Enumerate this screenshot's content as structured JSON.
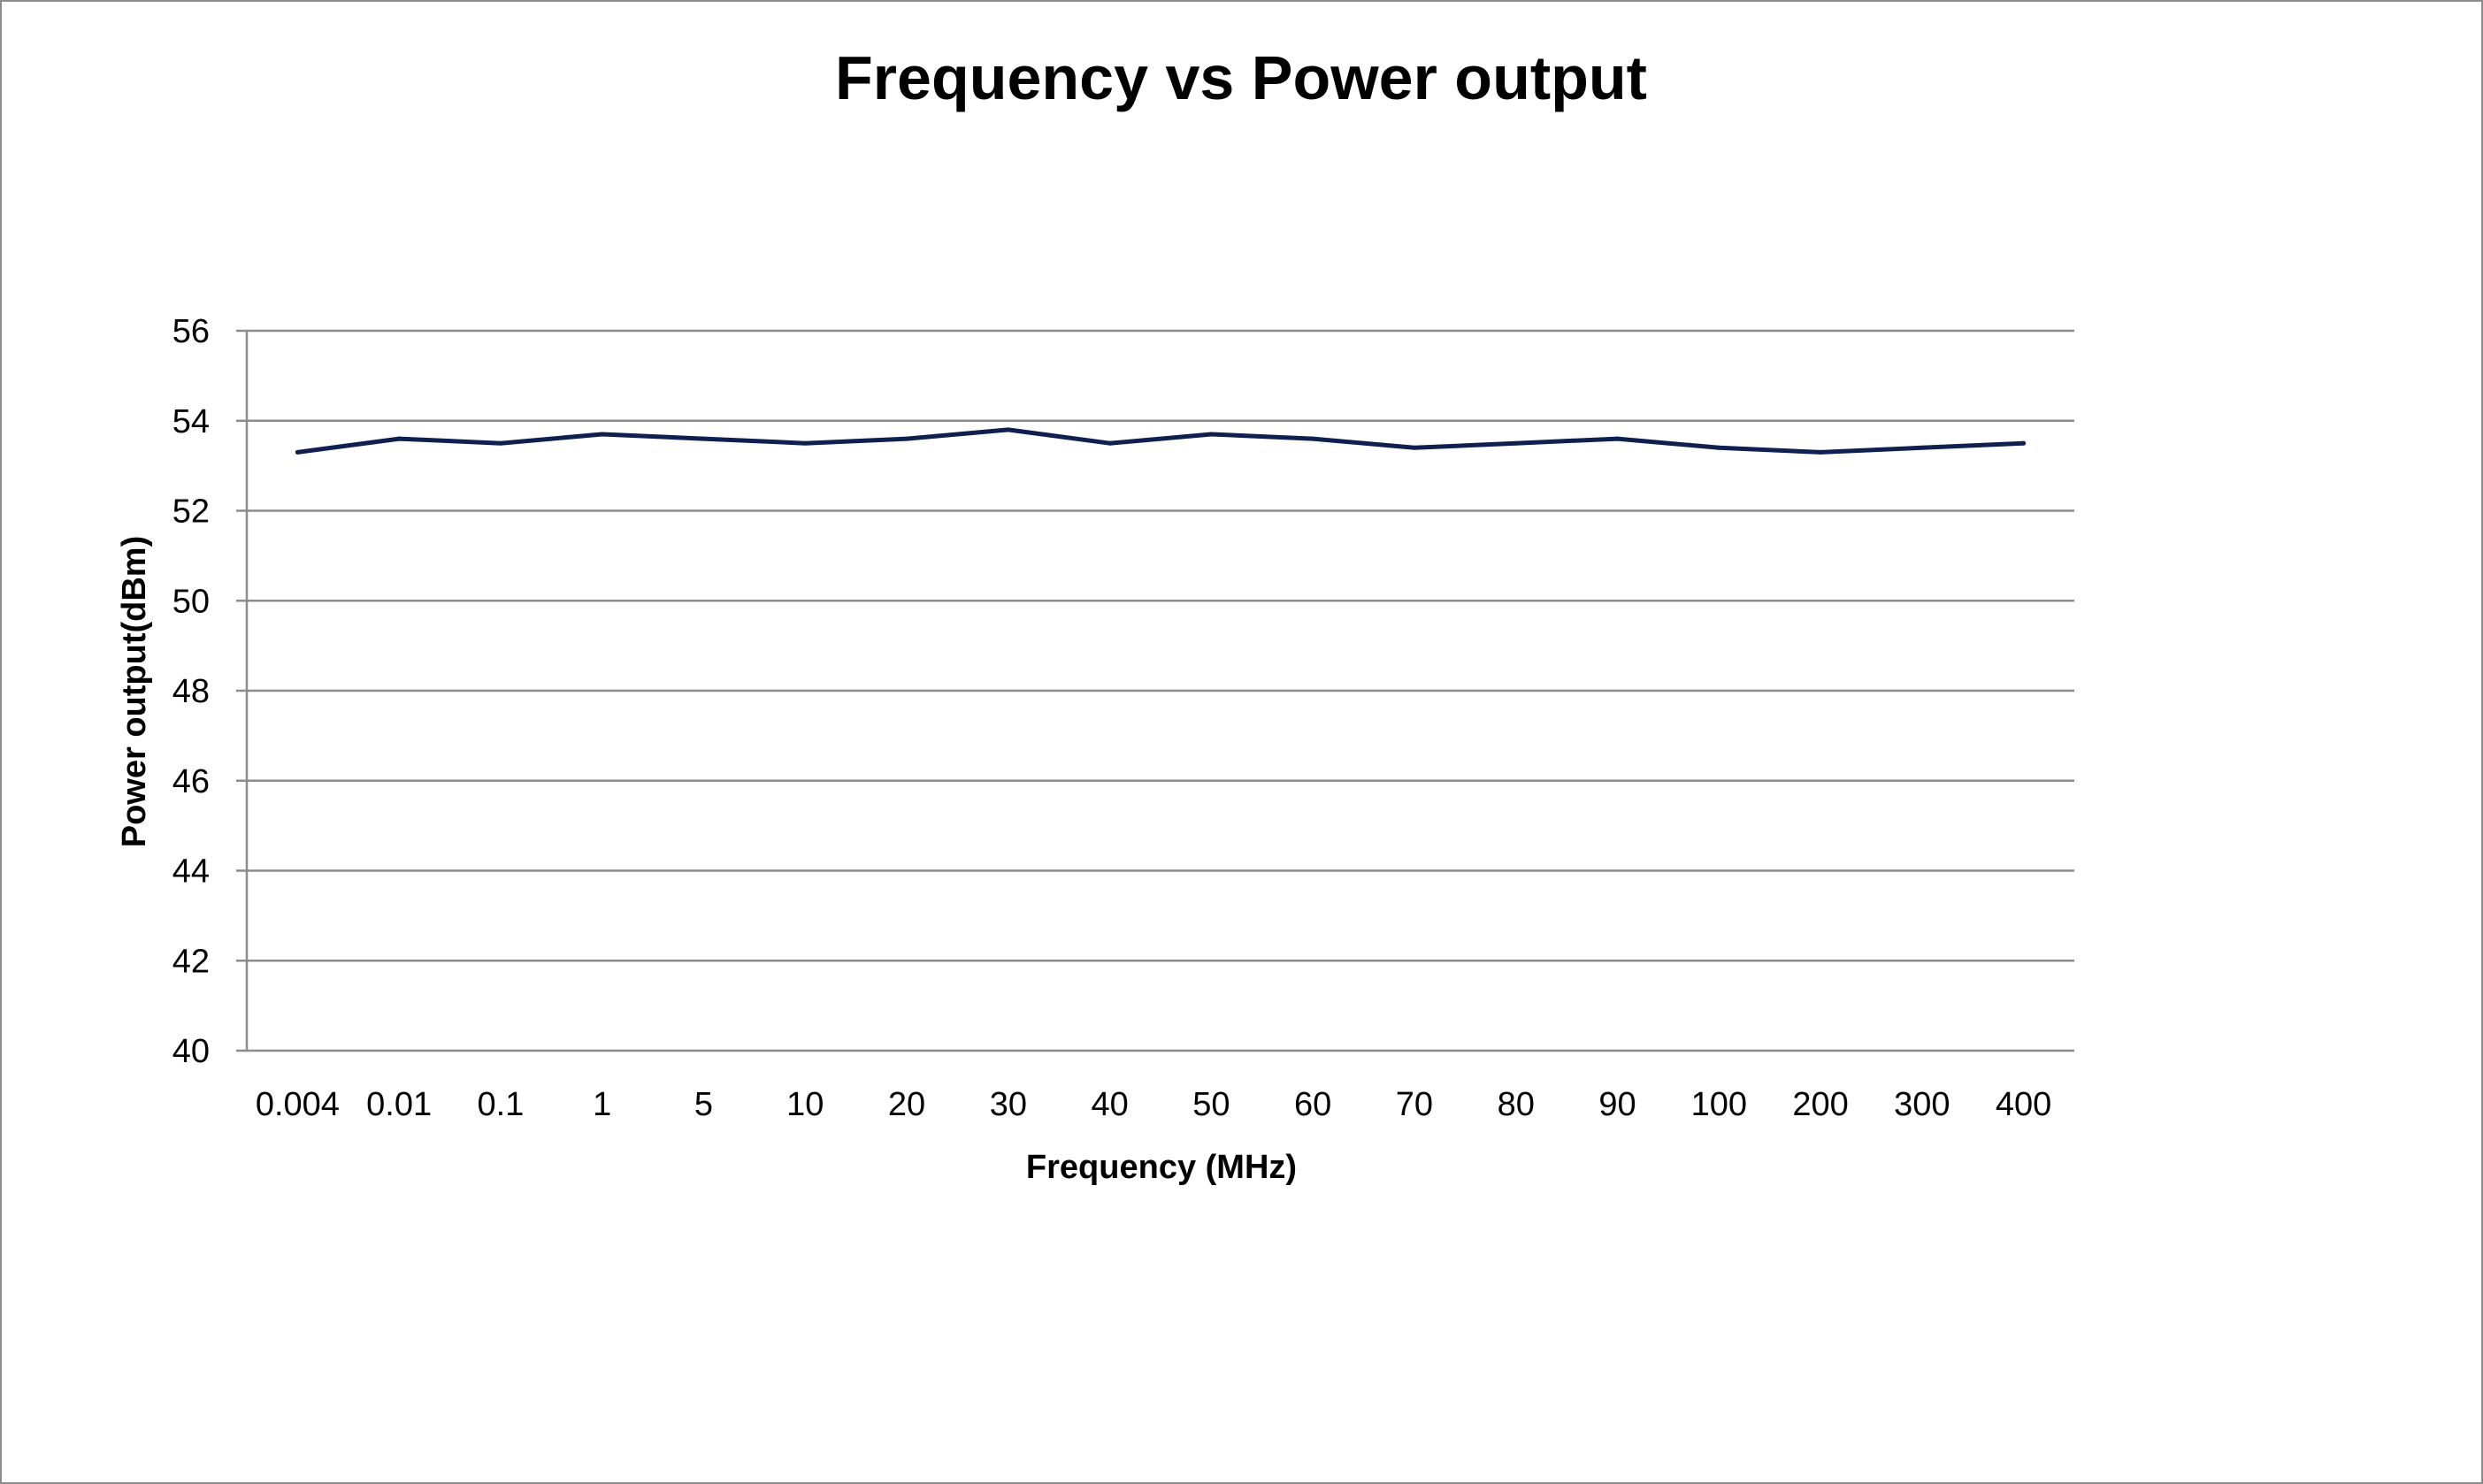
{
  "chart_data": {
    "type": "line",
    "title": "Frequency vs Power output",
    "xlabel": "Frequency (MHz)",
    "ylabel": "Power output(dBm)",
    "categories": [
      "0.004",
      "0.01",
      "0.1",
      "1",
      "5",
      "10",
      "20",
      "30",
      "40",
      "50",
      "60",
      "70",
      "80",
      "90",
      "100",
      "200",
      "300",
      "400"
    ],
    "series": [
      {
        "values": [
          53.3,
          53.6,
          53.5,
          53.7,
          53.6,
          53.5,
          53.6,
          53.8,
          53.5,
          53.7,
          53.6,
          53.4,
          53.5,
          53.6,
          53.4,
          53.3,
          53.4,
          53.5
        ],
        "color": "#0f1f4f"
      }
    ],
    "ylim": [
      40,
      56
    ],
    "yticks": [
      40,
      42,
      44,
      46,
      48,
      50,
      52,
      54,
      56
    ],
    "grid": true,
    "legend": "none"
  }
}
